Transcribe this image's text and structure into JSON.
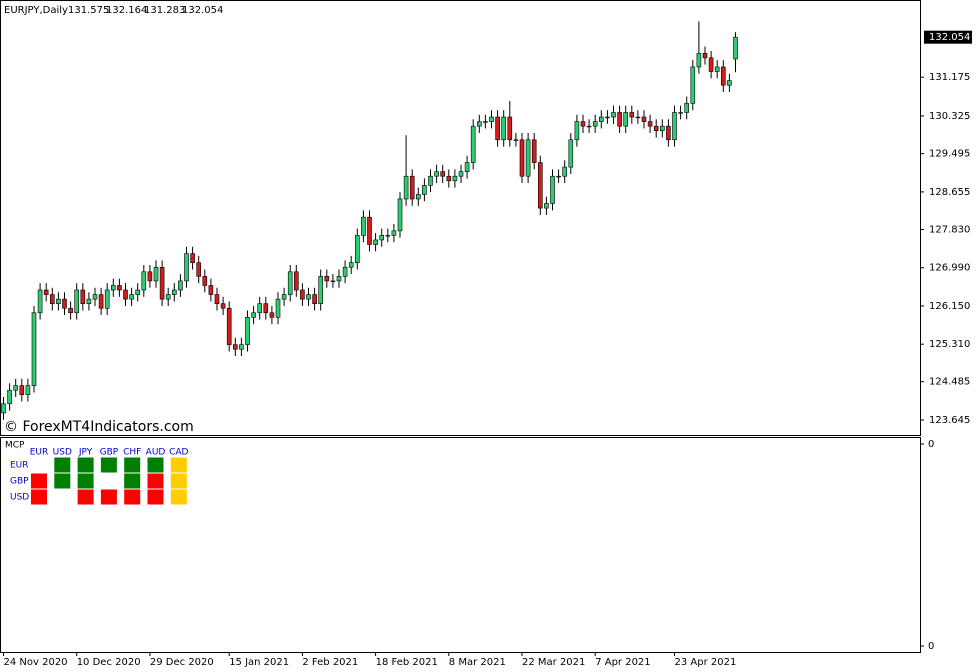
{
  "chart_data": {
    "type": "candlestick",
    "symbol": "EURJPY,Daily",
    "watermark": "© ForexMT4Indicators.com",
    "up_color": "#2ecc71",
    "down_color": "#d41c1c",
    "outline_color": "#000000",
    "categories": [
      "24 Nov 2020",
      null,
      null,
      null,
      null,
      null,
      null,
      null,
      null,
      null,
      null,
      null,
      "10 Dec 2020",
      null,
      null,
      null,
      null,
      null,
      null,
      null,
      null,
      null,
      null,
      null,
      "29 Dec 2020",
      null,
      null,
      null,
      null,
      null,
      null,
      null,
      null,
      null,
      null,
      null,
      null,
      "15 Jan 2021",
      null,
      null,
      null,
      null,
      null,
      null,
      null,
      null,
      null,
      null,
      null,
      "2 Feb 2021",
      null,
      null,
      null,
      null,
      null,
      null,
      null,
      null,
      null,
      null,
      null,
      "18 Feb 2021",
      null,
      null,
      null,
      null,
      null,
      null,
      null,
      null,
      null,
      null,
      null,
      "8 Mar 2021",
      null,
      null,
      null,
      null,
      null,
      null,
      null,
      null,
      null,
      null,
      null,
      "22 Mar 2021",
      null,
      null,
      null,
      null,
      null,
      null,
      null,
      null,
      null,
      null,
      null,
      "7 Apr 2021",
      null,
      null,
      null,
      null,
      null,
      null,
      null,
      null,
      null,
      null,
      null,
      null,
      "23 Apr 2021",
      null,
      null,
      null,
      null,
      null,
      null,
      null,
      null,
      null,
      null
    ],
    "open": [
      123.8,
      124.0,
      124.3,
      124.4,
      124.2,
      124.4,
      126.0,
      126.5,
      126.4,
      126.2,
      126.3,
      126.1,
      126.0,
      126.5,
      126.2,
      126.3,
      126.4,
      126.1,
      126.5,
      126.6,
      126.5,
      126.3,
      126.4,
      126.5,
      126.9,
      126.7,
      127.0,
      126.3,
      126.4,
      126.5,
      126.7,
      127.3,
      127.1,
      126.8,
      126.6,
      126.4,
      126.2,
      126.1,
      125.3,
      125.2,
      125.3,
      125.9,
      126.0,
      126.2,
      126.0,
      125.9,
      126.3,
      126.4,
      126.9,
      126.5,
      126.3,
      126.4,
      126.2,
      126.8,
      126.7,
      126.7,
      126.8,
      127.0,
      127.1,
      127.7,
      128.1,
      127.5,
      127.6,
      127.7,
      127.7,
      127.8,
      128.5,
      129.0,
      128.5,
      128.6,
      128.8,
      129.0,
      129.1,
      129.0,
      128.9,
      129.0,
      129.1,
      129.3,
      130.1,
      130.2,
      130.2,
      130.3,
      129.8,
      130.3,
      129.8,
      129.8,
      129.0,
      129.8,
      129.3,
      128.3,
      128.4,
      129.0,
      129.0,
      129.2,
      129.8,
      130.2,
      130.1,
      130.1,
      130.2,
      130.3,
      130.3,
      130.4,
      130.1,
      130.4,
      130.3,
      130.3,
      130.2,
      130.1,
      130.0,
      130.1,
      129.8,
      130.4,
      130.4,
      130.6,
      131.4,
      131.7,
      131.6,
      131.3,
      131.4,
      131.0,
      131.575
    ],
    "high": [
      124.15,
      124.45,
      124.55,
      124.55,
      124.55,
      126.15,
      126.65,
      126.65,
      126.55,
      126.45,
      126.45,
      126.25,
      126.65,
      126.65,
      126.45,
      126.55,
      126.55,
      126.65,
      126.75,
      126.75,
      126.65,
      126.55,
      126.65,
      127.05,
      127.05,
      127.15,
      127.15,
      126.55,
      126.65,
      126.85,
      127.45,
      127.45,
      127.25,
      126.95,
      126.75,
      126.55,
      126.35,
      126.25,
      125.45,
      125.45,
      126.05,
      126.15,
      126.35,
      126.35,
      126.15,
      126.45,
      126.55,
      127.05,
      127.05,
      126.65,
      126.55,
      126.55,
      126.95,
      126.95,
      126.85,
      126.95,
      127.15,
      127.25,
      127.85,
      128.25,
      128.25,
      127.75,
      127.85,
      127.85,
      127.95,
      128.65,
      129.9,
      129.15,
      128.75,
      128.95,
      129.15,
      129.25,
      129.25,
      129.15,
      129.15,
      129.25,
      129.45,
      130.25,
      130.35,
      130.35,
      130.45,
      130.45,
      130.45,
      130.65,
      129.95,
      129.95,
      129.95,
      129.95,
      129.45,
      128.55,
      129.15,
      129.15,
      129.35,
      129.95,
      130.35,
      130.35,
      130.25,
      130.35,
      130.45,
      130.45,
      130.55,
      130.55,
      130.55,
      130.55,
      130.45,
      130.45,
      130.35,
      130.25,
      130.25,
      130.25,
      130.55,
      130.55,
      130.75,
      131.55,
      132.4,
      131.85,
      131.75,
      131.55,
      131.55,
      131.25,
      132.164
    ],
    "low": [
      123.65,
      123.85,
      124.15,
      124.05,
      124.05,
      124.25,
      125.85,
      126.25,
      126.05,
      126.05,
      125.95,
      125.85,
      125.85,
      126.05,
      126.05,
      126.15,
      125.95,
      125.95,
      126.35,
      126.35,
      126.15,
      126.15,
      126.25,
      126.35,
      126.55,
      126.55,
      126.15,
      126.15,
      126.25,
      126.35,
      126.55,
      126.95,
      126.65,
      126.45,
      126.25,
      126.05,
      125.95,
      125.15,
      125.05,
      125.05,
      125.15,
      125.75,
      125.85,
      125.85,
      125.75,
      125.75,
      126.15,
      126.25,
      126.35,
      126.15,
      126.15,
      126.05,
      126.05,
      126.55,
      126.55,
      126.55,
      126.65,
      126.85,
      126.95,
      127.55,
      127.35,
      127.35,
      127.45,
      127.55,
      127.55,
      127.65,
      128.35,
      128.35,
      128.35,
      128.45,
      128.65,
      128.85,
      128.85,
      128.75,
      128.75,
      128.85,
      128.95,
      129.15,
      129.95,
      130.05,
      130.05,
      129.65,
      129.65,
      129.65,
      129.65,
      128.85,
      128.85,
      129.15,
      128.15,
      128.15,
      128.25,
      128.85,
      128.85,
      129.05,
      129.65,
      129.95,
      129.95,
      129.95,
      130.05,
      130.15,
      130.15,
      129.95,
      129.95,
      130.15,
      130.15,
      130.05,
      129.95,
      129.85,
      129.85,
      129.65,
      129.65,
      130.25,
      130.25,
      130.45,
      131.25,
      131.45,
      131.15,
      131.15,
      130.85,
      130.85,
      131.283
    ],
    "close": [
      124.0,
      124.3,
      124.4,
      124.2,
      124.4,
      126.0,
      126.5,
      126.4,
      126.2,
      126.3,
      126.1,
      126.0,
      126.5,
      126.2,
      126.3,
      126.4,
      126.1,
      126.5,
      126.6,
      126.5,
      126.3,
      126.4,
      126.5,
      126.9,
      126.7,
      127.0,
      126.3,
      126.4,
      126.5,
      126.7,
      127.3,
      127.1,
      126.8,
      126.6,
      126.4,
      126.2,
      126.1,
      125.3,
      125.2,
      125.3,
      125.9,
      126.0,
      126.2,
      126.0,
      125.9,
      126.3,
      126.4,
      126.9,
      126.5,
      126.3,
      126.4,
      126.2,
      126.8,
      126.7,
      126.7,
      126.8,
      127.0,
      127.1,
      127.7,
      128.1,
      127.5,
      127.6,
      127.7,
      127.7,
      127.8,
      128.5,
      129.0,
      128.5,
      128.6,
      128.8,
      129.0,
      129.1,
      129.0,
      128.9,
      129.0,
      129.1,
      129.3,
      130.1,
      130.2,
      130.2,
      130.3,
      129.8,
      130.3,
      129.8,
      129.8,
      129.0,
      129.8,
      129.3,
      128.3,
      128.4,
      129.0,
      129.0,
      129.2,
      129.8,
      130.2,
      130.1,
      130.1,
      130.2,
      130.3,
      130.3,
      130.4,
      130.1,
      130.4,
      130.3,
      130.3,
      130.2,
      130.1,
      130.0,
      130.1,
      129.8,
      130.4,
      130.4,
      130.6,
      131.4,
      131.7,
      131.6,
      131.3,
      131.4,
      131.0,
      131.1,
      132.054
    ],
    "ylim": [
      123.315,
      132.849
    ],
    "yticks": [
      131.175,
      130.325,
      129.495,
      128.655,
      {
        "value": 127.83,
        "label": "127.830"
      },
      {
        "value": 126.99,
        "label": "126.990"
      },
      {
        "value": 126.15,
        "label": "126.150"
      },
      {
        "value": 125.31,
        "label": "125.310"
      },
      124.485,
      123.645
    ],
    "grid": false
  },
  "indicator": {
    "name": "MCP",
    "axis_labels": [
      "0",
      "0"
    ],
    "columns": [
      "EUR",
      "USD",
      "JPY",
      "GBP",
      "CHF",
      "AUD",
      "CAD"
    ],
    "rows": [
      {
        "label": "EUR",
        "cells": [
          null,
          "#008000",
          "#008000",
          "#008000",
          "#008000",
          "#008000",
          "#ffcc00"
        ]
      },
      {
        "label": "GBP",
        "cells": [
          "#ff0000",
          "#008000",
          "#008000",
          null,
          "#008000",
          "#ff0000",
          "#ffcc00"
        ]
      },
      {
        "label": "USD",
        "cells": [
          "#ff0000",
          null,
          "#ff0000",
          "#ff0000",
          "#ff0000",
          "#ff0000",
          "#ffcc00"
        ]
      }
    ]
  }
}
